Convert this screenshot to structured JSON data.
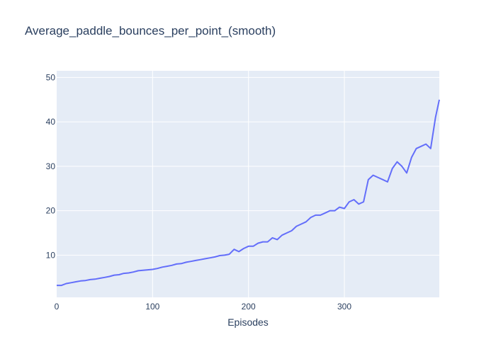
{
  "chart_data": {
    "type": "line",
    "title": "Average_paddle_bounces_per_point_(smooth)",
    "xlabel": "Episodes",
    "ylabel": "",
    "xlim": [
      0,
      399
    ],
    "ylim": [
      0.5,
      51.5
    ],
    "xticks": [
      0,
      100,
      200,
      300
    ],
    "yticks": [
      10,
      20,
      30,
      40,
      50
    ],
    "grid": true,
    "line_color": "#636efa",
    "plot_bg": "#e5ecf6",
    "grid_color": "#ffffff",
    "series": [
      {
        "x": [
          0,
          5,
          10,
          15,
          20,
          25,
          30,
          35,
          40,
          45,
          50,
          55,
          60,
          65,
          70,
          75,
          80,
          85,
          90,
          95,
          100,
          105,
          110,
          115,
          120,
          125,
          130,
          135,
          140,
          145,
          150,
          155,
          160,
          165,
          170,
          175,
          180,
          185,
          190,
          195,
          200,
          205,
          210,
          215,
          220,
          225,
          230,
          235,
          240,
          245,
          250,
          255,
          260,
          265,
          270,
          275,
          280,
          285,
          290,
          295,
          300,
          305,
          310,
          315,
          320,
          325,
          330,
          335,
          340,
          345,
          350,
          355,
          360,
          365,
          370,
          375,
          380,
          385,
          390,
          395,
          399
        ],
        "y": [
          3.2,
          3.2,
          3.6,
          3.8,
          4.0,
          4.2,
          4.3,
          4.5,
          4.6,
          4.8,
          5.0,
          5.2,
          5.5,
          5.6,
          5.9,
          6.0,
          6.2,
          6.5,
          6.6,
          6.7,
          6.8,
          7.0,
          7.3,
          7.5,
          7.7,
          8.0,
          8.1,
          8.4,
          8.6,
          8.8,
          9.0,
          9.2,
          9.4,
          9.6,
          9.9,
          10.0,
          10.2,
          11.3,
          10.8,
          11.5,
          12.0,
          12.0,
          12.7,
          13.0,
          13.0,
          13.9,
          13.5,
          14.5,
          15.0,
          15.5,
          16.5,
          17.0,
          17.5,
          18.5,
          19.0,
          19.0,
          19.5,
          20.0,
          20.0,
          20.8,
          20.5,
          22.0,
          22.5,
          21.5,
          22.0,
          27.0,
          28.0,
          27.5,
          27.0,
          26.5,
          29.5,
          31.0,
          30.0,
          28.5,
          32.0,
          34.0,
          34.5,
          35.0,
          34.0,
          41.0,
          45.0
        ]
      }
    ]
  }
}
